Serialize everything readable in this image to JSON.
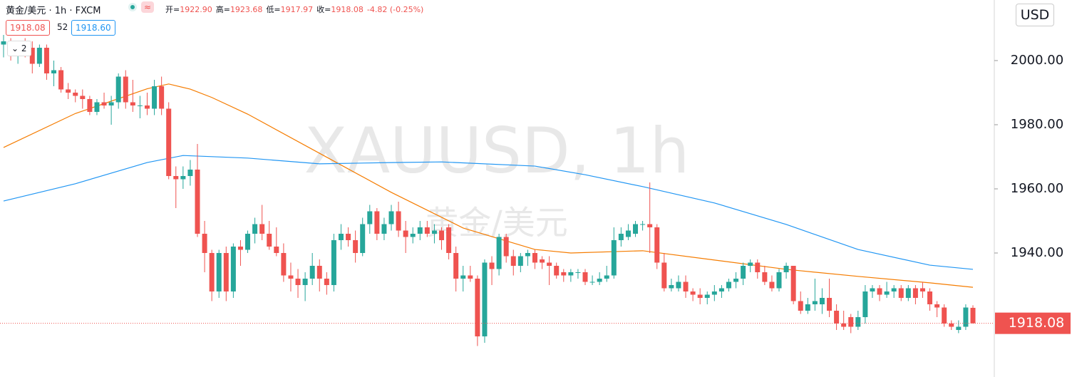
{
  "header": {
    "title": "黄金/美元 · 1h · FXCM",
    "ohlc": [
      {
        "label": "开=",
        "value": "1922.90"
      },
      {
        "label": "高=",
        "value": "1923.68"
      },
      {
        "label": "低=",
        "value": "1917.97"
      },
      {
        "label": "收=",
        "value": "1918.08"
      }
    ],
    "change": "-4.82 (-0.25%)",
    "spread": "52",
    "ask": "1918.60",
    "collapsed": "2",
    "currency": "USD"
  },
  "watermark": {
    "symbol": "XAUUSD, 1h",
    "name": "黄金/美元"
  },
  "chart_data": {
    "type": "candlestick",
    "up_color": "#26a69a",
    "down_color": "#ef5350",
    "ylim": [
      1901.33,
      2018.89
    ],
    "yticks": [
      {
        "value": 1940,
        "label": "1940.00"
      },
      {
        "value": 1960,
        "label": "1960.00"
      },
      {
        "value": 1980,
        "label": "1980.00"
      },
      {
        "value": 2000,
        "label": "2000.00"
      }
    ],
    "candles": [
      [
        2005,
        2008,
        2001,
        2006
      ],
      [
        2006,
        2007,
        2000,
        2002
      ],
      [
        2002,
        2006,
        1999,
        2005
      ],
      [
        2005,
        2007,
        2001,
        2004
      ],
      [
        2004,
        2006,
        1996,
        1999
      ],
      [
        1999,
        2005,
        1998,
        2004
      ],
      [
        2004,
        2005,
        1994,
        1996
      ],
      [
        1996,
        2000,
        1992,
        1997
      ],
      [
        1997,
        1998,
        1990,
        1991
      ],
      [
        1991,
        1993,
        1988,
        1990
      ],
      [
        1990,
        1991,
        1987,
        1989
      ],
      [
        1989,
        1991,
        1985,
        1988
      ],
      [
        1988,
        1989,
        1983,
        1984
      ],
      [
        1984,
        1988,
        1983,
        1987
      ],
      [
        1987,
        1990,
        1985,
        1986
      ],
      [
        1986,
        1989,
        1980,
        1987
      ],
      [
        1987,
        1996,
        1985,
        1995
      ],
      [
        1995,
        1997,
        1985,
        1987
      ],
      [
        1987,
        1994,
        1984,
        1986
      ],
      [
        1986,
        1989,
        1982,
        1986
      ],
      [
        1986,
        1990,
        1983,
        1985
      ],
      [
        1985,
        1994,
        1983,
        1992
      ],
      [
        1992,
        1995,
        1983,
        1985
      ],
      [
        1985,
        1987,
        1963,
        1964
      ],
      [
        1964,
        1967,
        1954,
        1963
      ],
      [
        1963,
        1967,
        1960,
        1964
      ],
      [
        1964,
        1969,
        1961,
        1966
      ],
      [
        1966,
        1974,
        1945,
        1946
      ],
      [
        1946,
        1950,
        1934,
        1940
      ],
      [
        1940,
        1941,
        1925,
        1928
      ],
      [
        1928,
        1941,
        1926,
        1940
      ],
      [
        1940,
        1942,
        1925,
        1928
      ],
      [
        1928,
        1943,
        1926,
        1942
      ],
      [
        1942,
        1944,
        1936,
        1941
      ],
      [
        1941,
        1947,
        1940,
        1946
      ],
      [
        1946,
        1951,
        1943,
        1949
      ],
      [
        1949,
        1955,
        1944,
        1946
      ],
      [
        1946,
        1950,
        1941,
        1942
      ],
      [
        1942,
        1948,
        1939,
        1940
      ],
      [
        1940,
        1943,
        1931,
        1933
      ],
      [
        1933,
        1937,
        1928,
        1932
      ],
      [
        1932,
        1935,
        1926,
        1930
      ],
      [
        1930,
        1934,
        1925,
        1932
      ],
      [
        1932,
        1940,
        1930,
        1936
      ],
      [
        1936,
        1938,
        1928,
        1932
      ],
      [
        1932,
        1934,
        1927,
        1930
      ],
      [
        1930,
        1946,
        1928,
        1944
      ],
      [
        1944,
        1949,
        1941,
        1946
      ],
      [
        1946,
        1948,
        1942,
        1944
      ],
      [
        1944,
        1947,
        1937,
        1940
      ],
      [
        1940,
        1951,
        1939,
        1949
      ],
      [
        1949,
        1955,
        1946,
        1953
      ],
      [
        1953,
        1954,
        1944,
        1946
      ],
      [
        1946,
        1951,
        1944,
        1949
      ],
      [
        1949,
        1955,
        1947,
        1953
      ],
      [
        1953,
        1956,
        1945,
        1947
      ],
      [
        1947,
        1950,
        1940,
        1945
      ],
      [
        1945,
        1948,
        1943,
        1946
      ],
      [
        1946,
        1950,
        1944,
        1948
      ],
      [
        1948,
        1950,
        1945,
        1946
      ],
      [
        1946,
        1949,
        1943,
        1947
      ],
      [
        1947,
        1948,
        1941,
        1944
      ],
      [
        1948,
        1949,
        1938,
        1940
      ],
      [
        1940,
        1942,
        1928,
        1932
      ],
      [
        1932,
        1936,
        1928,
        1933
      ],
      [
        1933,
        1936,
        1931,
        1932
      ],
      [
        1932,
        1933,
        1911,
        1914
      ],
      [
        1914,
        1938,
        1912,
        1937
      ],
      [
        1937,
        1939,
        1930,
        1935
      ],
      [
        1935,
        1946,
        1933,
        1945
      ],
      [
        1945,
        1946,
        1937,
        1939
      ],
      [
        1939,
        1941,
        1933,
        1936
      ],
      [
        1936,
        1940,
        1934,
        1939
      ],
      [
        1939,
        1941,
        1936,
        1940
      ],
      [
        1940,
        1941,
        1935,
        1937
      ],
      [
        1938,
        1939,
        1935,
        1937
      ],
      [
        1937,
        1939,
        1930,
        1936
      ],
      [
        1936,
        1937,
        1932,
        1933
      ],
      [
        1934,
        1935,
        1931,
        1933
      ],
      [
        1933,
        1935,
        1931,
        1934
      ],
      [
        1934,
        1935,
        1932,
        1934
      ],
      [
        1934,
        1935,
        1930,
        1931
      ],
      [
        1931,
        1933,
        1930,
        1931
      ],
      [
        1931,
        1934,
        1930,
        1932
      ],
      [
        1932,
        1936,
        1931,
        1933
      ],
      [
        1933,
        1948,
        1932,
        1944
      ],
      [
        1944,
        1948,
        1942,
        1946
      ],
      [
        1945,
        1949,
        1944,
        1947
      ],
      [
        1946,
        1950,
        1945,
        1949
      ],
      [
        1949,
        1950,
        1947,
        1949
      ],
      [
        1949,
        1962,
        1940,
        1948
      ],
      [
        1948,
        1949,
        1935,
        1937
      ],
      [
        1937,
        1940,
        1928,
        1929
      ],
      [
        1929,
        1932,
        1928,
        1930
      ],
      [
        1929,
        1933,
        1928,
        1931
      ],
      [
        1931,
        1933,
        1926,
        1928
      ],
      [
        1928,
        1929,
        1925,
        1927
      ],
      [
        1927,
        1929,
        1924,
        1926
      ],
      [
        1926,
        1928,
        1924,
        1927
      ],
      [
        1927,
        1930,
        1925,
        1928
      ],
      [
        1928,
        1930,
        1926,
        1929
      ],
      [
        1929,
        1932,
        1928,
        1931
      ],
      [
        1931,
        1934,
        1929,
        1932
      ],
      [
        1932,
        1937,
        1930,
        1936
      ],
      [
        1936,
        1938,
        1934,
        1937
      ],
      [
        1937,
        1938,
        1932,
        1934
      ],
      [
        1934,
        1936,
        1930,
        1931
      ],
      [
        1931,
        1933,
        1928,
        1929
      ],
      [
        1929,
        1935,
        1928,
        1934
      ],
      [
        1934,
        1937,
        1932,
        1936
      ],
      [
        1936,
        1936,
        1924,
        1925
      ],
      [
        1925,
        1928,
        1921,
        1922
      ],
      [
        1922,
        1926,
        1921,
        1924
      ],
      [
        1924,
        1932,
        1922,
        1925
      ],
      [
        1924,
        1929,
        1921,
        1926
      ],
      [
        1926,
        1932,
        1920,
        1922
      ],
      [
        1922,
        1924,
        1916,
        1918
      ],
      [
        1918,
        1922,
        1916,
        1917
      ],
      [
        1920,
        1921,
        1915,
        1917
      ],
      [
        1917,
        1922,
        1916,
        1920
      ],
      [
        1920,
        1930,
        1918,
        1928
      ],
      [
        1928,
        1930,
        1926,
        1929
      ],
      [
        1929,
        1930,
        1925,
        1927
      ],
      [
        1927,
        1931,
        1926,
        1928
      ],
      [
        1928,
        1930,
        1926,
        1929
      ],
      [
        1929,
        1930,
        1925,
        1926
      ],
      [
        1926,
        1930,
        1925,
        1929
      ],
      [
        1929,
        1930,
        1924,
        1926
      ],
      [
        1929,
        1931,
        1926,
        1928
      ],
      [
        1928,
        1929,
        1922,
        1924
      ],
      [
        1924,
        1925,
        1920,
        1923
      ],
      [
        1923,
        1924,
        1917,
        1918
      ],
      [
        1918,
        1919,
        1916,
        1917
      ],
      [
        1916,
        1919,
        1915,
        1917
      ],
      [
        1917,
        1924,
        1916,
        1923
      ],
      [
        1922.9,
        1923.68,
        1917.97,
        1918.08
      ]
    ],
    "series": [
      {
        "color": "#f57c00",
        "x": [
          0,
          10,
          20,
          23,
          26,
          29,
          34,
          44,
          54,
          64,
          74,
          79,
          89,
          99,
          109,
          119,
          129,
          135
        ],
        "values": [
          1972.9,
          1983.5,
          1991.2,
          1992.7,
          1991.1,
          1988.5,
          1983.3,
          1971.1,
          1958.9,
          1947.8,
          1941.1,
          1940,
          1940.7,
          1937.8,
          1934.9,
          1932.7,
          1930.7,
          1929.3
        ]
      },
      {
        "color": "#2196f3",
        "x": [
          0,
          10,
          20,
          25,
          34,
          44,
          54,
          61,
          74,
          81,
          89,
          99,
          109,
          119,
          129,
          135
        ],
        "values": [
          1956.2,
          1961.6,
          1968.2,
          1970.4,
          1969.6,
          1967.8,
          1968.2,
          1968.4,
          1967.1,
          1964.4,
          1960.7,
          1955.6,
          1948.9,
          1941.1,
          1936.2,
          1934.9
        ]
      }
    ]
  }
}
